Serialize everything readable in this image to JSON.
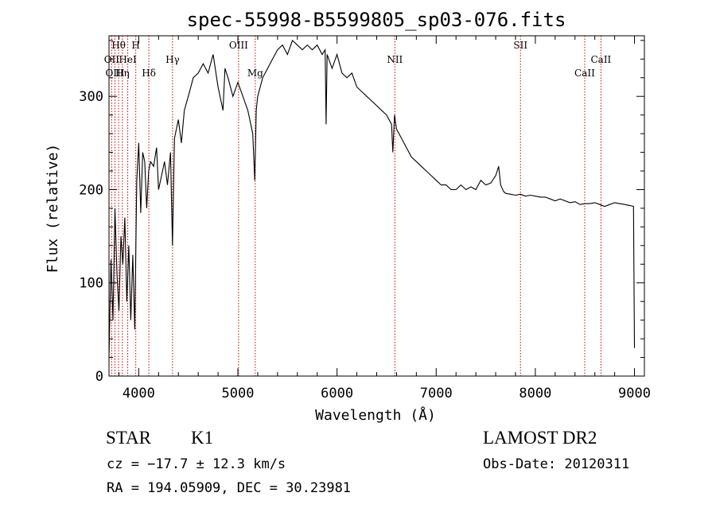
{
  "chart_data": {
    "type": "line",
    "title": "spec-55998-B5599805_sp03-076.fits",
    "xlabel": "Wavelength (Å)",
    "ylabel": "Flux (relative)",
    "xlim": [
      3700,
      9100
    ],
    "ylim": [
      0,
      365
    ],
    "xticks": [
      4000,
      5000,
      6000,
      7000,
      8000,
      9000
    ],
    "yticks": [
      0,
      100,
      200,
      300
    ],
    "xtick_labels": [
      "4000",
      "5000",
      "6000",
      "7000",
      "8000",
      "9000"
    ],
    "ytick_labels": [
      "0",
      "100",
      "200",
      "300"
    ],
    "grid": false,
    "line_color": "#000000",
    "marker_color": "#cc0000",
    "series": [
      {
        "x": [
          3700,
          3720,
          3740,
          3760,
          3780,
          3800,
          3820,
          3840,
          3860,
          3880,
          3900,
          3920,
          3940,
          3960,
          3980,
          4000,
          4020,
          4040,
          4060,
          4080,
          4100,
          4120,
          4150,
          4180,
          4200,
          4230,
          4260,
          4290,
          4320,
          4340,
          4360,
          4400,
          4430,
          4460,
          4500,
          4550,
          4600,
          4650,
          4700,
          4750,
          4800,
          4850,
          4870,
          4900,
          4950,
          5000,
          5050,
          5100,
          5150,
          5170,
          5185,
          5200,
          5250,
          5300,
          5350,
          5400,
          5450,
          5500,
          5550,
          5600,
          5650,
          5700,
          5750,
          5800,
          5850,
          5880,
          5890,
          5900,
          5950,
          6000,
          6050,
          6100,
          6150,
          6200,
          6250,
          6300,
          6350,
          6400,
          6450,
          6500,
          6550,
          6563,
          6580,
          6600,
          6650,
          6700,
          6750,
          6800,
          6850,
          6900,
          6950,
          7000,
          7050,
          7100,
          7150,
          7200,
          7250,
          7300,
          7350,
          7400,
          7450,
          7500,
          7550,
          7600,
          7630,
          7650,
          7680,
          7700,
          7750,
          7800,
          7850,
          7900,
          7950,
          8000,
          8050,
          8100,
          8150,
          8200,
          8250,
          8300,
          8350,
          8400,
          8450,
          8500,
          8550,
          8600,
          8650,
          8700,
          8750,
          8800,
          8850,
          8900,
          8950,
          8990,
          9000
        ],
        "y": [
          20,
          125,
          60,
          180,
          110,
          70,
          150,
          120,
          170,
          80,
          140,
          60,
          130,
          50,
          210,
          250,
          175,
          240,
          230,
          180,
          220,
          230,
          225,
          245,
          200,
          215,
          230,
          205,
          240,
          140,
          255,
          275,
          250,
          285,
          300,
          320,
          325,
          335,
          325,
          345,
          310,
          285,
          330,
          320,
          300,
          315,
          300,
          285,
          260,
          210,
          285,
          300,
          320,
          330,
          340,
          350,
          355,
          345,
          360,
          355,
          350,
          355,
          350,
          355,
          345,
          350,
          270,
          345,
          330,
          345,
          325,
          320,
          325,
          310,
          305,
          300,
          295,
          290,
          285,
          280,
          270,
          240,
          280,
          265,
          255,
          245,
          235,
          230,
          225,
          220,
          215,
          210,
          205,
          205,
          200,
          200,
          205,
          200,
          203,
          200,
          210,
          205,
          207,
          215,
          225,
          205,
          198,
          196,
          195,
          194,
          195,
          193,
          194,
          193,
          192,
          192,
          190,
          188,
          190,
          188,
          186,
          187,
          184,
          185,
          185,
          186,
          184,
          182,
          184,
          186,
          185,
          184,
          183,
          182,
          30
        ]
      }
    ],
    "line_markers": [
      {
        "label": "Hθ",
        "x": 3797,
        "row": 1
      },
      {
        "label": "H",
        "x": 3970,
        "row": 1
      },
      {
        "label": "OII",
        "x": 3727,
        "row": 2
      },
      {
        "label": "HeI",
        "x": 3889,
        "row": 2
      },
      {
        "label": "OIII",
        "x": 3760,
        "row": 3
      },
      {
        "label": "Hη",
        "x": 3835,
        "row": 3
      },
      {
        "label": "Hδ",
        "x": 4102,
        "row": 3
      },
      {
        "label": "Hγ",
        "x": 4341,
        "row": 2
      },
      {
        "label": "OIII",
        "x": 5007,
        "row": 1
      },
      {
        "label": "Mg",
        "x": 5175,
        "row": 3
      },
      {
        "label": "NII",
        "x": 6583,
        "row": 2
      },
      {
        "label": "SII",
        "x": 7850,
        "row": 1
      },
      {
        "label": "CaII",
        "x": 8498,
        "row": 3
      },
      {
        "label": "CaII",
        "x": 8662,
        "row": 2
      }
    ]
  },
  "info": {
    "class_label": "STAR",
    "subclass_label": "K1",
    "survey_label": "LAMOST DR2",
    "cz_text": "cz = −17.7 ± 12.3 km/s",
    "obs_date_text": "Obs-Date: 20120311",
    "radec_text": "RA = 194.05909, DEC =  30.23981"
  }
}
